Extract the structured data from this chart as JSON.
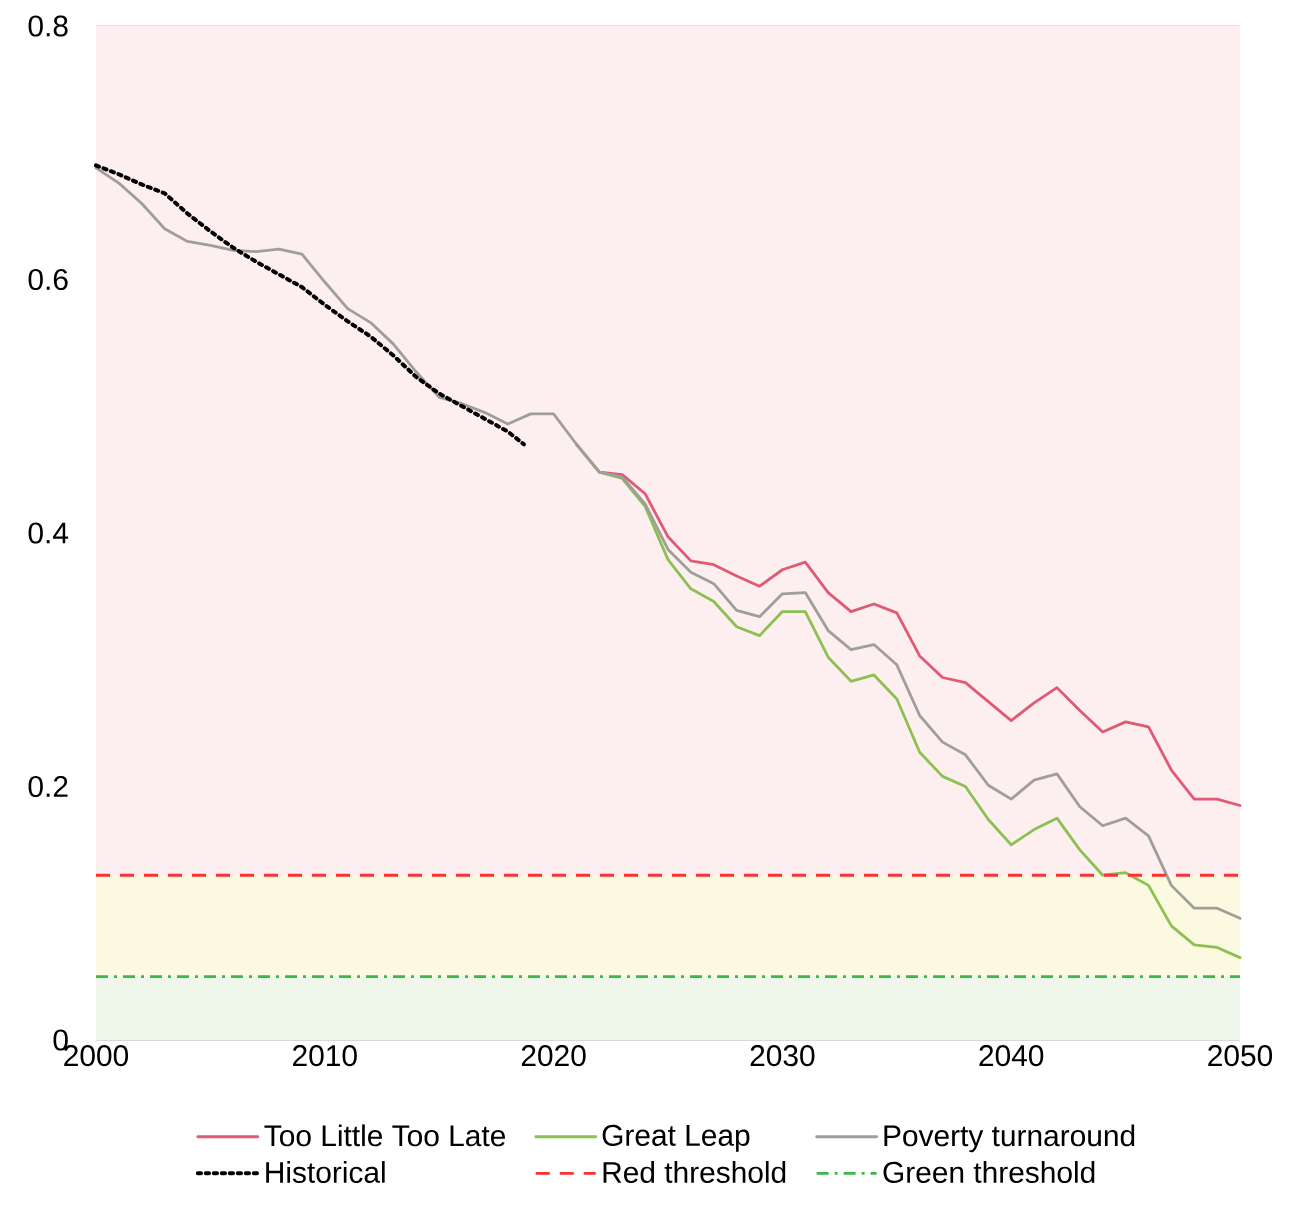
{
  "chart_data": {
    "type": "line",
    "x": [
      2000,
      2001,
      2002,
      2003,
      2004,
      2005,
      2006,
      2007,
      2008,
      2009,
      2010,
      2011,
      2012,
      2013,
      2014,
      2015,
      2016,
      2017,
      2018,
      2019,
      2020,
      2021,
      2022,
      2023,
      2024,
      2025,
      2026,
      2027,
      2028,
      2029,
      2030,
      2031,
      2032,
      2033,
      2034,
      2035,
      2036,
      2037,
      2038,
      2039,
      2040,
      2041,
      2042,
      2043,
      2044,
      2045,
      2046,
      2047,
      2048,
      2049,
      2050
    ],
    "series": [
      {
        "name": "Too Little Too Late",
        "color": "#e05a75",
        "values": [
          null,
          null,
          null,
          null,
          null,
          null,
          null,
          null,
          null,
          null,
          null,
          null,
          null,
          null,
          null,
          null,
          null,
          null,
          null,
          null,
          null,
          0.47,
          0.448,
          0.446,
          0.431,
          0.397,
          0.378,
          0.375,
          0.366,
          0.358,
          0.371,
          0.377,
          0.353,
          0.338,
          0.344,
          0.337,
          0.303,
          0.286,
          0.282,
          0.267,
          0.252,
          0.266,
          0.278,
          0.26,
          0.243,
          0.251,
          0.247,
          0.213,
          0.19,
          0.19,
          0.185
        ]
      },
      {
        "name": "Great Leap",
        "color": "#8cc152",
        "values": [
          null,
          null,
          null,
          null,
          null,
          null,
          null,
          null,
          null,
          null,
          null,
          null,
          null,
          null,
          null,
          null,
          null,
          null,
          null,
          null,
          null,
          0.47,
          0.448,
          0.443,
          0.421,
          0.379,
          0.356,
          0.346,
          0.326,
          0.319,
          0.338,
          0.338,
          0.302,
          0.283,
          0.288,
          0.269,
          0.227,
          0.208,
          0.2,
          0.174,
          0.154,
          0.166,
          0.175,
          0.15,
          0.13,
          0.132,
          0.122,
          0.09,
          0.075,
          0.073,
          0.065
        ]
      },
      {
        "name": "Poverty turnaround",
        "color": "#a09e98",
        "values": [
          0.688,
          0.676,
          0.66,
          0.64,
          0.63,
          0.627,
          0.623,
          0.622,
          0.624,
          0.62,
          0.598,
          0.577,
          0.566,
          0.549,
          0.527,
          0.507,
          0.502,
          0.495,
          0.486,
          0.494,
          0.494,
          0.47,
          0.448,
          0.444,
          0.423,
          0.387,
          0.369,
          0.36,
          0.339,
          0.334,
          0.352,
          0.353,
          0.323,
          0.308,
          0.312,
          0.296,
          0.256,
          0.235,
          0.225,
          0.201,
          0.19,
          0.205,
          0.21,
          0.184,
          0.169,
          0.175,
          0.161,
          0.122,
          0.104,
          0.104,
          0.096
        ]
      },
      {
        "name": "Historical",
        "color": "#000000",
        "line_style": "dotted",
        "x": [
          2000,
          2001,
          2002,
          2003,
          2004,
          2005,
          2006,
          2007,
          2008,
          2009,
          2010,
          2011,
          2012,
          2013,
          2014,
          2015,
          2016,
          2017,
          2018,
          2018.7
        ],
        "values": [
          0.69,
          0.683,
          0.675,
          0.668,
          0.652,
          0.638,
          0.625,
          0.614,
          0.604,
          0.594,
          0.58,
          0.567,
          0.555,
          0.54,
          0.523,
          0.51,
          0.5,
          0.49,
          0.48,
          0.47
        ]
      }
    ],
    "ref_lines": [
      {
        "axis": "y",
        "value": 0.13,
        "label": "Red threshold",
        "color": "#ff3030",
        "line_style": "dashed"
      },
      {
        "axis": "y",
        "value": 0.05,
        "label": "Green threshold",
        "color": "#3cb84a",
        "line_style": "dashdot"
      }
    ],
    "bands": [
      {
        "axis": "y",
        "from": 0.13,
        "to": 0.8,
        "color": "#fdeff0"
      },
      {
        "axis": "y",
        "from": 0.05,
        "to": 0.13,
        "color": "#fbfae1"
      },
      {
        "axis": "y",
        "from": 0,
        "to": 0.05,
        "color": "#eff6ea"
      }
    ],
    "xlim": [
      2000,
      2050
    ],
    "xticks": [
      2000,
      2010,
      2020,
      2030,
      2040,
      2050
    ],
    "ylim": [
      0,
      0.8
    ],
    "yticks": [
      0,
      0.2,
      0.4,
      0.6,
      0.8
    ],
    "grid": "y",
    "legend": "bottom",
    "marker": "none",
    "line_style": "solid"
  }
}
